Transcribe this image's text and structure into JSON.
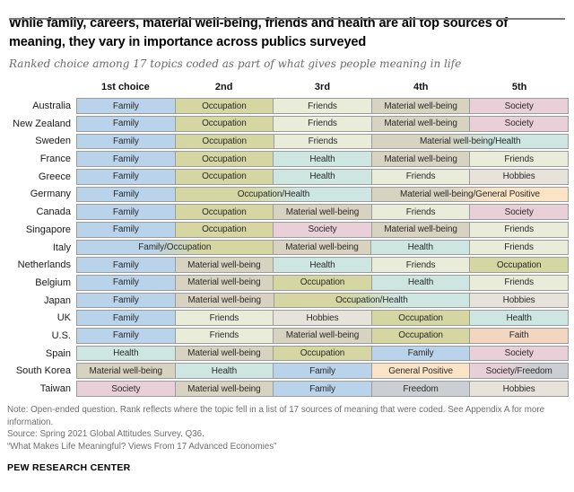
{
  "chart_data": {
    "type": "table",
    "title": "While family, careers, material well-being, friends and health are all top sources of meaning, they vary in importance across publics surveyed",
    "subtitle": "Ranked choice among 17 topics coded as part of what gives people meaning in life",
    "columns": [
      "1st choice",
      "2nd",
      "3rd",
      "4th",
      "5th"
    ],
    "categories": {
      "family": {
        "label": "Family",
        "color": "#b9d3ea"
      },
      "occupation": {
        "label": "Occupation",
        "color": "#d5d6a2"
      },
      "friends": {
        "label": "Friends",
        "color": "#e9ecd8"
      },
      "material": {
        "label": "Material well-being",
        "color": "#d8d2c0"
      },
      "society": {
        "label": "Society",
        "color": "#e9d0d8"
      },
      "health": {
        "label": "Health",
        "color": "#cde6e1"
      },
      "hobbies": {
        "label": "Hobbies",
        "color": "#e7e3da"
      },
      "faith": {
        "label": "Faith",
        "color": "#f3d6c0"
      },
      "general_positive": {
        "label": "General Positive",
        "color": "#fbe4c6"
      },
      "freedom": {
        "label": "Freedom",
        "color": "#cbced2"
      }
    },
    "rows": [
      {
        "country": "Australia",
        "cells": [
          {
            "text": "Family",
            "cats": [
              "family"
            ],
            "span": 1
          },
          {
            "text": "Occupation",
            "cats": [
              "occupation"
            ],
            "span": 1
          },
          {
            "text": "Friends",
            "cats": [
              "friends"
            ],
            "span": 1
          },
          {
            "text": "Material well-being",
            "cats": [
              "material"
            ],
            "span": 1
          },
          {
            "text": "Society",
            "cats": [
              "society"
            ],
            "span": 1
          }
        ]
      },
      {
        "country": "New Zealand",
        "cells": [
          {
            "text": "Family",
            "cats": [
              "family"
            ],
            "span": 1
          },
          {
            "text": "Occupation",
            "cats": [
              "occupation"
            ],
            "span": 1
          },
          {
            "text": "Friends",
            "cats": [
              "friends"
            ],
            "span": 1
          },
          {
            "text": "Material well-being",
            "cats": [
              "material"
            ],
            "span": 1
          },
          {
            "text": "Society",
            "cats": [
              "society"
            ],
            "span": 1
          }
        ]
      },
      {
        "country": "Sweden",
        "cells": [
          {
            "text": "Family",
            "cats": [
              "family"
            ],
            "span": 1
          },
          {
            "text": "Occupation",
            "cats": [
              "occupation"
            ],
            "span": 1
          },
          {
            "text": "Friends",
            "cats": [
              "friends"
            ],
            "span": 1
          },
          {
            "text": "Material well-being/Health",
            "cats": [
              "material",
              "health"
            ],
            "span": 2
          }
        ]
      },
      {
        "country": "France",
        "cells": [
          {
            "text": "Family",
            "cats": [
              "family"
            ],
            "span": 1
          },
          {
            "text": "Occupation",
            "cats": [
              "occupation"
            ],
            "span": 1
          },
          {
            "text": "Health",
            "cats": [
              "health"
            ],
            "span": 1
          },
          {
            "text": "Material well-being",
            "cats": [
              "material"
            ],
            "span": 1
          },
          {
            "text": "Friends",
            "cats": [
              "friends"
            ],
            "span": 1
          }
        ]
      },
      {
        "country": "Greece",
        "cells": [
          {
            "text": "Family",
            "cats": [
              "family"
            ],
            "span": 1
          },
          {
            "text": "Occupation",
            "cats": [
              "occupation"
            ],
            "span": 1
          },
          {
            "text": "Health",
            "cats": [
              "health"
            ],
            "span": 1
          },
          {
            "text": "Friends",
            "cats": [
              "friends"
            ],
            "span": 1
          },
          {
            "text": "Hobbies",
            "cats": [
              "hobbies"
            ],
            "span": 1
          }
        ]
      },
      {
        "country": "Germany",
        "cells": [
          {
            "text": "Family",
            "cats": [
              "family"
            ],
            "span": 1
          },
          {
            "text": "Occupation/Health",
            "cats": [
              "occupation",
              "health"
            ],
            "span": 2
          },
          {
            "text": "Material well-being/General Positive",
            "cats": [
              "material",
              "general_positive"
            ],
            "span": 2
          }
        ]
      },
      {
        "country": "Canada",
        "cells": [
          {
            "text": "Family",
            "cats": [
              "family"
            ],
            "span": 1
          },
          {
            "text": "Occupation",
            "cats": [
              "occupation"
            ],
            "span": 1
          },
          {
            "text": "Material well-being",
            "cats": [
              "material"
            ],
            "span": 1
          },
          {
            "text": "Friends",
            "cats": [
              "friends"
            ],
            "span": 1
          },
          {
            "text": "Society",
            "cats": [
              "society"
            ],
            "span": 1
          }
        ]
      },
      {
        "country": "Singapore",
        "cells": [
          {
            "text": "Family",
            "cats": [
              "family"
            ],
            "span": 1
          },
          {
            "text": "Occupation",
            "cats": [
              "occupation"
            ],
            "span": 1
          },
          {
            "text": "Society",
            "cats": [
              "society"
            ],
            "span": 1
          },
          {
            "text": "Material well-being",
            "cats": [
              "material"
            ],
            "span": 1
          },
          {
            "text": "Friends",
            "cats": [
              "friends"
            ],
            "span": 1
          }
        ]
      },
      {
        "country": "Italy",
        "cells": [
          {
            "text": "Family/Occupation",
            "cats": [
              "family",
              "occupation"
            ],
            "span": 2
          },
          {
            "text": "Material well-being",
            "cats": [
              "material"
            ],
            "span": 1
          },
          {
            "text": "Health",
            "cats": [
              "health"
            ],
            "span": 1
          },
          {
            "text": "Friends",
            "cats": [
              "friends"
            ],
            "span": 1
          }
        ]
      },
      {
        "country": "Netherlands",
        "cells": [
          {
            "text": "Family",
            "cats": [
              "family"
            ],
            "span": 1
          },
          {
            "text": "Material well-being",
            "cats": [
              "material"
            ],
            "span": 1
          },
          {
            "text": "Health",
            "cats": [
              "health"
            ],
            "span": 1
          },
          {
            "text": "Friends",
            "cats": [
              "friends"
            ],
            "span": 1
          },
          {
            "text": "Occupation",
            "cats": [
              "occupation"
            ],
            "span": 1
          }
        ]
      },
      {
        "country": "Belgium",
        "cells": [
          {
            "text": "Family",
            "cats": [
              "family"
            ],
            "span": 1
          },
          {
            "text": "Material well-being",
            "cats": [
              "material"
            ],
            "span": 1
          },
          {
            "text": "Occupation",
            "cats": [
              "occupation"
            ],
            "span": 1
          },
          {
            "text": "Health",
            "cats": [
              "health"
            ],
            "span": 1
          },
          {
            "text": "Friends",
            "cats": [
              "friends"
            ],
            "span": 1
          }
        ]
      },
      {
        "country": "Japan",
        "cells": [
          {
            "text": "Family",
            "cats": [
              "family"
            ],
            "span": 1
          },
          {
            "text": "Material well-being",
            "cats": [
              "material"
            ],
            "span": 1
          },
          {
            "text": "Occupation/Health",
            "cats": [
              "occupation",
              "health"
            ],
            "span": 2
          },
          {
            "text": "Hobbies",
            "cats": [
              "hobbies"
            ],
            "span": 1
          }
        ]
      },
      {
        "country": "UK",
        "cells": [
          {
            "text": "Family",
            "cats": [
              "family"
            ],
            "span": 1
          },
          {
            "text": "Friends",
            "cats": [
              "friends"
            ],
            "span": 1
          },
          {
            "text": "Hobbies",
            "cats": [
              "hobbies"
            ],
            "span": 1
          },
          {
            "text": "Occupation",
            "cats": [
              "occupation"
            ],
            "span": 1
          },
          {
            "text": "Health",
            "cats": [
              "health"
            ],
            "span": 1
          }
        ]
      },
      {
        "country": "U.S.",
        "cells": [
          {
            "text": "Family",
            "cats": [
              "family"
            ],
            "span": 1
          },
          {
            "text": "Friends",
            "cats": [
              "friends"
            ],
            "span": 1
          },
          {
            "text": "Material well-being",
            "cats": [
              "material"
            ],
            "span": 1
          },
          {
            "text": "Occupation",
            "cats": [
              "occupation"
            ],
            "span": 1
          },
          {
            "text": "Faith",
            "cats": [
              "faith"
            ],
            "span": 1
          }
        ]
      },
      {
        "country": "Spain",
        "cells": [
          {
            "text": "Health",
            "cats": [
              "health"
            ],
            "span": 1
          },
          {
            "text": "Material well-being",
            "cats": [
              "material"
            ],
            "span": 1
          },
          {
            "text": "Occupation",
            "cats": [
              "occupation"
            ],
            "span": 1
          },
          {
            "text": "Family",
            "cats": [
              "family"
            ],
            "span": 1
          },
          {
            "text": "Society",
            "cats": [
              "society"
            ],
            "span": 1
          }
        ]
      },
      {
        "country": "South Korea",
        "cells": [
          {
            "text": "Material well-being",
            "cats": [
              "material"
            ],
            "span": 1
          },
          {
            "text": "Health",
            "cats": [
              "health"
            ],
            "span": 1
          },
          {
            "text": "Family",
            "cats": [
              "family"
            ],
            "span": 1
          },
          {
            "text": "General Positive",
            "cats": [
              "general_positive"
            ],
            "span": 1
          },
          {
            "text": "Society/Freedom",
            "cats": [
              "society",
              "freedom"
            ],
            "span": 1
          }
        ]
      },
      {
        "country": "Taiwan",
        "cells": [
          {
            "text": "Society",
            "cats": [
              "society"
            ],
            "span": 1
          },
          {
            "text": "Material well-being",
            "cats": [
              "material"
            ],
            "span": 1
          },
          {
            "text": "Family",
            "cats": [
              "family"
            ],
            "span": 1
          },
          {
            "text": "Freedom",
            "cats": [
              "freedom"
            ],
            "span": 1
          },
          {
            "text": "Hobbies",
            "cats": [
              "hobbies"
            ],
            "span": 1
          }
        ]
      }
    ]
  },
  "footer": {
    "note": "Note: Open-ended question. Rank reflects where the topic fell in a list of 17 sources of meaning that were coded. See Appendix A for more information.",
    "source": "Source: Spring 2021 Global Attitudes Survey. Q36.",
    "citation": "“What Makes Life Meaningful? Views From 17 Advanced Economies”",
    "branding": "PEW RESEARCH CENTER"
  }
}
